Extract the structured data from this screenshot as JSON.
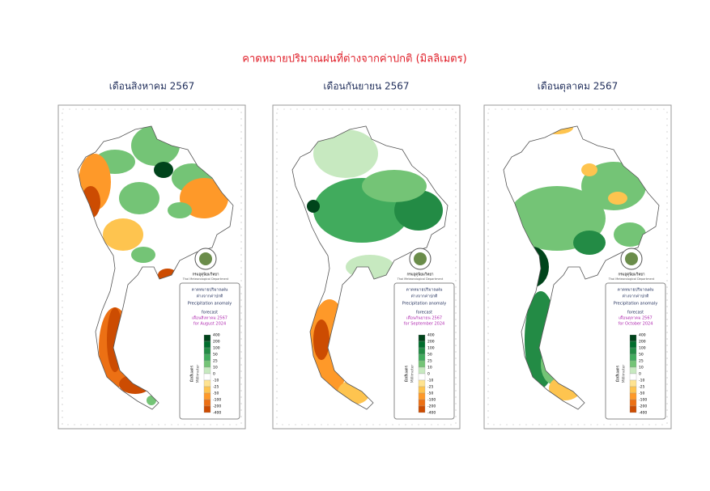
{
  "title": "คาดหมายปริมาณฝนที่ต่างจากค่าปกติ (มิลลิเมตร)",
  "panels": [
    {
      "title": "เดือนสิงหาคม 2567",
      "legend": {
        "heading": [
          "คาดหมายปริมาณฝน",
          "ต่างจากค่าปกติ"
        ],
        "english": "Precipitation anomaly",
        "forecast": "forecast",
        "month_th": "เดือนสิงหาคม 2567",
        "month_en": "for August 2024"
      }
    },
    {
      "title": "เดือนกันยายน 2567",
      "legend": {
        "heading": [
          "คาดหมายปริมาณฝน",
          "ต่างจากค่าปกติ"
        ],
        "english": "Precipitation anomaly",
        "forecast": "forecast",
        "month_th": "เดือนกันยายน 2567",
        "month_en": "for September 2024"
      }
    },
    {
      "title": "เดือนตุลาคม 2567",
      "legend": {
        "heading": [
          "คาดหมายปริมาณฝน",
          "ต่างจากค่าปกติ"
        ],
        "english": "Precipitation anomaly",
        "forecast": "forecast",
        "month_th": "เดือนตุลาคม 2567",
        "month_en": "for October 2024"
      }
    }
  ],
  "logo": {
    "th": "กรมอุตุนิยมวิทยา",
    "en": "Thai Meteorological Department"
  },
  "scale": {
    "ticks": [
      400,
      200,
      100,
      50,
      25,
      10,
      0,
      -10,
      -25,
      -50,
      -100,
      -200,
      -400
    ],
    "colors": [
      "#00441b",
      "#006d2c",
      "#238b45",
      "#41ab5d",
      "#74c476",
      "#c7e9c0",
      "#ffffff",
      "#fee391",
      "#fec44f",
      "#fe9929",
      "#ec7014",
      "#cc4c02"
    ],
    "unit_th": "มิลลิเมตร",
    "unit_en": "Millimeter"
  }
}
